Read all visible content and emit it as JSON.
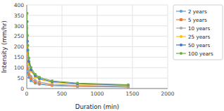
{
  "chart_data": {
    "type": "line",
    "xlabel": "Duration (min)",
    "ylabel": "Intensity (mm/hr)",
    "x": [
      5,
      10,
      15,
      30,
      60,
      120,
      180,
      360,
      720,
      1440
    ],
    "xlim": [
      0,
      2000
    ],
    "ylim": [
      0,
      400
    ],
    "xticks": [
      0,
      500,
      1000,
      1500,
      2000
    ],
    "yticks": [
      0,
      50,
      100,
      150,
      200,
      250,
      300,
      350,
      400
    ],
    "grid": true,
    "legend": "right",
    "series": [
      {
        "name": "2 years",
        "color": "#5B9BD5",
        "marker": "circle",
        "values": [
          130,
          92,
          75,
          53,
          37,
          25,
          20,
          14,
          10,
          7
        ]
      },
      {
        "name": "5 years",
        "color": "#ED7D31",
        "marker": "square",
        "values": [
          165,
          116,
          95,
          67,
          47,
          31,
          25,
          17,
          12,
          8
        ]
      },
      {
        "name": "10 years",
        "color": "#A5A5A5",
        "marker": "circle",
        "values": [
          205,
          145,
          118,
          83,
          58,
          39,
          31,
          21,
          15,
          10
        ]
      },
      {
        "name": "25 years",
        "color": "#FFC000",
        "marker": "circle",
        "values": [
          290,
          205,
          167,
          117,
          82,
          55,
          44,
          30,
          21,
          14
        ]
      },
      {
        "name": "50 years",
        "color": "#4472C4",
        "marker": "circle",
        "values": [
          320,
          226,
          184,
          129,
          90,
          61,
          48,
          33,
          23,
          16
        ]
      },
      {
        "name": "100 years",
        "color": "#70AD47",
        "marker": "circle",
        "values": [
          360,
          254,
          207,
          145,
          101,
          68,
          54,
          37,
          26,
          18
        ]
      }
    ]
  }
}
